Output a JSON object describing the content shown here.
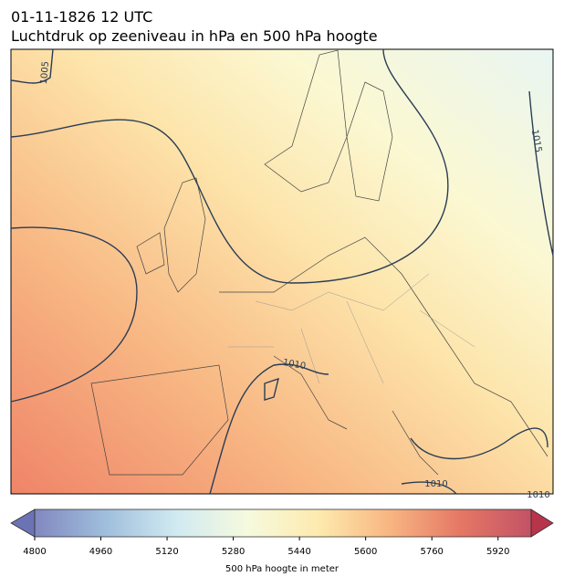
{
  "title": "01-11-1826 12 UTC",
  "subtitle": "Luchtdruk op zeeniveau in hPa en 500 hPa hoogte",
  "contour_labels": [
    "1005",
    "1015",
    "1010",
    "1010",
    "1010"
  ],
  "colorbar": {
    "label": "500 hPa hoogte in meter",
    "range": [
      4800,
      6000
    ],
    "ticks": [
      4800,
      4960,
      5120,
      5280,
      5440,
      5600,
      5760,
      5920
    ],
    "colors": [
      "#6b73b4",
      "#8fb3d6",
      "#c9e6ef",
      "#f4f9d8",
      "#fde7a0",
      "#f7a96c",
      "#e0604a",
      "#b8344a"
    ]
  }
}
